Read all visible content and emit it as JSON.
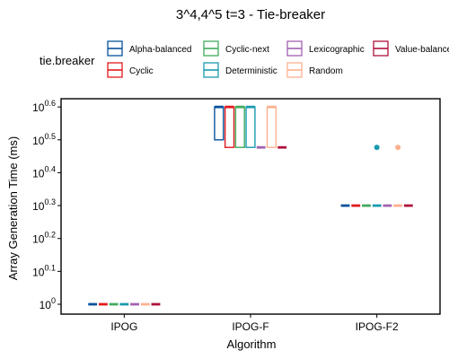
{
  "chart_data": {
    "type": "boxplot",
    "title": "3^4,4^5 t=3 - Tie-breaker",
    "xlabel": "Algorithm",
    "ylabel": "Array Generation Time (ms)",
    "y_scale": "log10",
    "ylim_log10": [
      -0.03,
      0.625
    ],
    "y_ticks": [
      {
        "base": "10",
        "exp": "0"
      },
      {
        "base": "10",
        "exp": "0.1"
      },
      {
        "base": "10",
        "exp": "0.2"
      },
      {
        "base": "10",
        "exp": "0.3"
      },
      {
        "base": "10",
        "exp": "0.4"
      },
      {
        "base": "10",
        "exp": "0.5"
      },
      {
        "base": "10",
        "exp": "0.6"
      }
    ],
    "categories": [
      "IPOG",
      "IPOG-F",
      "IPOG-F2"
    ],
    "legend": {
      "title": "tie.breaker",
      "position": "top"
    },
    "series": [
      {
        "name": "Alpha-balanced",
        "color": "#08519c",
        "boxes_log10": [
          [
            0,
            0,
            0,
            0,
            0
          ],
          [
            0.6,
            0.6,
            0.6,
            0.5,
            0.5
          ],
          [
            0.3,
            0.3,
            0.3,
            0.3,
            0.3
          ]
        ],
        "outliers_log10": [
          [],
          [],
          []
        ]
      },
      {
        "name": "Cyclic",
        "color": "#e31a1c",
        "boxes_log10": [
          [
            0,
            0,
            0,
            0,
            0
          ],
          [
            0.6,
            0.6,
            0.6,
            0.477,
            0.477
          ],
          [
            0.3,
            0.3,
            0.3,
            0.3,
            0.3
          ]
        ],
        "outliers_log10": [
          [],
          [],
          []
        ]
      },
      {
        "name": "Cyclic-next",
        "color": "#41ab5d",
        "boxes_log10": [
          [
            0,
            0,
            0,
            0,
            0
          ],
          [
            0.6,
            0.6,
            0.6,
            0.477,
            0.477
          ],
          [
            0.3,
            0.3,
            0.3,
            0.3,
            0.3
          ]
        ],
        "outliers_log10": [
          [],
          [],
          []
        ]
      },
      {
        "name": "Deterministic",
        "color": "#1a9bb0",
        "boxes_log10": [
          [
            0,
            0,
            0,
            0,
            0
          ],
          [
            0.6,
            0.6,
            0.6,
            0.477,
            0.477
          ],
          [
            0.3,
            0.3,
            0.3,
            0.3,
            0.3
          ]
        ],
        "outliers_log10": [
          [],
          [],
          [
            0.477
          ]
        ]
      },
      {
        "name": "Lexicographic",
        "color": "#a361b2",
        "boxes_log10": [
          [
            0,
            0,
            0,
            0,
            0
          ],
          [
            0.477,
            0.477,
            0.477,
            0.477,
            0.477
          ],
          [
            0.3,
            0.3,
            0.3,
            0.3,
            0.3
          ]
        ],
        "outliers_log10": [
          [],
          [],
          []
        ]
      },
      {
        "name": "Random",
        "color": "#fdb08e",
        "boxes_log10": [
          [
            0,
            0,
            0,
            0,
            0
          ],
          [
            0.6,
            0.6,
            0.6,
            0.477,
            0.477
          ],
          [
            0.3,
            0.3,
            0.3,
            0.3,
            0.3
          ]
        ],
        "outliers_log10": [
          [],
          [],
          [
            0.477
          ]
        ]
      },
      {
        "name": "Value-balanced",
        "color": "#b0103c",
        "boxes_log10": [
          [
            0,
            0,
            0,
            0,
            0
          ],
          [
            0.477,
            0.477,
            0.477,
            0.477,
            0.477
          ],
          [
            0.3,
            0.3,
            0.3,
            0.3,
            0.3
          ]
        ],
        "outliers_log10": [
          [],
          [],
          []
        ]
      }
    ]
  }
}
